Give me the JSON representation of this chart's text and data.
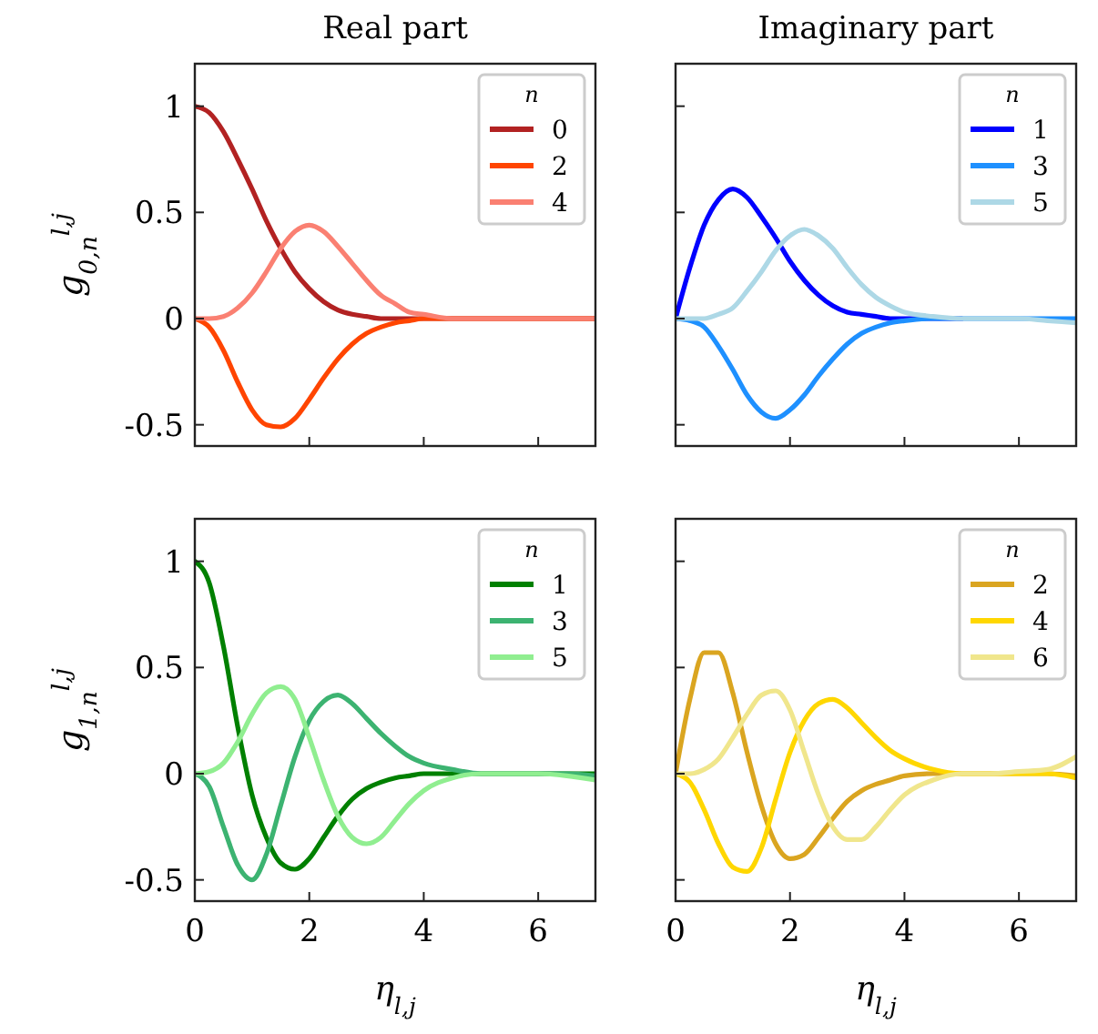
{
  "chart_data": [
    {
      "type": "line",
      "title": "Real part",
      "ylabel": "g$_{0,n}$$^{l,j}$",
      "legend_title": "n",
      "x": [
        0,
        0.25,
        0.5,
        0.75,
        1,
        1.25,
        1.5,
        1.75,
        2,
        2.25,
        2.5,
        2.75,
        3,
        3.25,
        3.5,
        3.75,
        4,
        4.5,
        5,
        5.5,
        6,
        6.5,
        7
      ],
      "xlim": [
        0,
        7
      ],
      "xticks": [
        0,
        2,
        4,
        6
      ],
      "ylim": [
        -0.6,
        1.2
      ],
      "yticks": [
        -0.5,
        0,
        0.5,
        1
      ],
      "tick_labels": "y",
      "legend": "top right",
      "grid": false,
      "marker": "none",
      "line_style": "solid",
      "series": [
        {
          "name": "0",
          "color": "#b22222",
          "values": [
            1,
            0.97,
            0.88,
            0.75,
            0.61,
            0.46,
            0.33,
            0.22,
            0.14,
            0.08,
            0.04,
            0.02,
            0.01,
            0,
            0,
            0,
            0,
            0,
            0,
            0,
            0,
            0,
            0
          ]
        },
        {
          "name": "2",
          "color": "#ff4500",
          "values": [
            0,
            -0.04,
            -0.15,
            -0.3,
            -0.43,
            -0.5,
            -0.51,
            -0.47,
            -0.38,
            -0.28,
            -0.19,
            -0.12,
            -0.07,
            -0.04,
            -0.02,
            -0.01,
            0,
            0,
            0,
            0,
            0,
            0,
            0
          ]
        },
        {
          "name": "4",
          "color": "#fa8072",
          "values": [
            0,
            0,
            0.01,
            0.05,
            0.12,
            0.22,
            0.33,
            0.41,
            0.44,
            0.41,
            0.34,
            0.26,
            0.18,
            0.11,
            0.07,
            0.03,
            0.02,
            0,
            0,
            0,
            0,
            0,
            0
          ]
        }
      ]
    },
    {
      "type": "line",
      "title": "Imaginary part",
      "legend_title": "n",
      "x": [
        0,
        0.25,
        0.5,
        0.75,
        1,
        1.25,
        1.5,
        1.75,
        2,
        2.25,
        2.5,
        2.75,
        3,
        3.25,
        3.5,
        3.75,
        4,
        4.5,
        5,
        5.5,
        6,
        6.5,
        7
      ],
      "xlim": [
        0,
        7
      ],
      "xticks": [
        0,
        2,
        4,
        6
      ],
      "ylim": [
        -0.6,
        1.2
      ],
      "yticks": [
        -0.5,
        0,
        0.5,
        1
      ],
      "tick_labels": false,
      "legend": "top right",
      "grid": false,
      "marker": "none",
      "line_style": "solid",
      "series": [
        {
          "name": "1",
          "color": "#0000ff",
          "values": [
            0,
            0.24,
            0.44,
            0.56,
            0.61,
            0.57,
            0.48,
            0.38,
            0.27,
            0.18,
            0.11,
            0.06,
            0.03,
            0.02,
            0.01,
            0,
            0,
            0,
            0,
            null,
            null,
            null,
            null
          ]
        },
        {
          "name": "3",
          "color": "#1e90ff",
          "values": [
            0,
            -0.01,
            -0.04,
            -0.13,
            -0.24,
            -0.36,
            -0.44,
            -0.47,
            -0.43,
            -0.36,
            -0.27,
            -0.19,
            -0.12,
            -0.07,
            -0.04,
            -0.02,
            -0.01,
            0,
            0,
            0,
            0,
            0,
            0
          ]
        },
        {
          "name": "5",
          "color": "#add8e6",
          "values": [
            0,
            0,
            0,
            0.02,
            0.05,
            0.13,
            0.22,
            0.32,
            0.39,
            0.42,
            0.39,
            0.33,
            0.24,
            0.16,
            0.1,
            0.06,
            0.03,
            0.01,
            0,
            0,
            0,
            -0.01,
            -0.02
          ]
        }
      ]
    },
    {
      "type": "line",
      "ylabel": "g$_{1,n}$$^{l,j}$",
      "xlabel": "η$_{l,j}$",
      "legend_title": "n",
      "x": [
        0,
        0.25,
        0.5,
        0.75,
        1,
        1.25,
        1.5,
        1.75,
        2,
        2.25,
        2.5,
        2.75,
        3,
        3.25,
        3.5,
        3.75,
        4,
        4.5,
        5,
        5.5,
        6,
        6.5,
        7
      ],
      "xlim": [
        0,
        7
      ],
      "xticks": [
        0,
        2,
        4,
        6
      ],
      "ylim": [
        -0.6,
        1.2
      ],
      "yticks": [
        -0.5,
        0,
        0.5,
        1
      ],
      "legend": "top right",
      "grid": false,
      "marker": "none",
      "line_style": "solid",
      "series": [
        {
          "name": "1",
          "color": "#008000",
          "values": [
            1,
            0.9,
            0.6,
            0.22,
            -0.1,
            -0.3,
            -0.42,
            -0.45,
            -0.4,
            -0.3,
            -0.2,
            -0.12,
            -0.07,
            -0.04,
            -0.02,
            -0.01,
            0,
            0,
            0,
            0,
            0,
            0,
            0
          ]
        },
        {
          "name": "3",
          "color": "#3cb371",
          "values": [
            0,
            -0.06,
            -0.25,
            -0.43,
            -0.5,
            -0.38,
            -0.15,
            0.08,
            0.25,
            0.34,
            0.37,
            0.33,
            0.26,
            0.19,
            0.13,
            0.08,
            0.05,
            0.02,
            0,
            0,
            0,
            0,
            -0.01
          ]
        },
        {
          "name": "5",
          "color": "#90ee90",
          "values": [
            0,
            0.01,
            0.05,
            0.15,
            0.28,
            0.38,
            0.41,
            0.35,
            0.17,
            -0.03,
            -0.2,
            -0.3,
            -0.33,
            -0.3,
            -0.22,
            -0.14,
            -0.08,
            -0.02,
            0,
            0,
            0,
            -0.01,
            -0.03
          ]
        }
      ]
    },
    {
      "type": "line",
      "xlabel": "η$_{l,j}$",
      "legend_title": "n",
      "x": [
        0,
        0.25,
        0.5,
        0.75,
        1,
        1.25,
        1.5,
        1.75,
        2,
        2.25,
        2.5,
        2.75,
        3,
        3.25,
        3.5,
        3.75,
        4,
        4.5,
        5,
        5.5,
        6,
        6.5,
        7
      ],
      "xlim": [
        0,
        7
      ],
      "xticks": [
        0,
        2,
        4,
        6
      ],
      "ylim": [
        -0.6,
        1.2
      ],
      "yticks": [
        -0.5,
        0,
        0.5,
        1
      ],
      "tick_labels": "x",
      "legend": "top right",
      "grid": false,
      "marker": "none",
      "line_style": "solid",
      "series": [
        {
          "name": "2",
          "color": "#daa520",
          "values": [
            0,
            0.35,
            0.57,
            0.57,
            0.38,
            0.1,
            -0.15,
            -0.33,
            -0.4,
            -0.38,
            -0.3,
            -0.21,
            -0.13,
            -0.08,
            -0.05,
            -0.03,
            -0.01,
            0,
            0,
            0,
            0,
            0,
            -0.01
          ]
        },
        {
          "name": "4",
          "color": "#ffd700",
          "values": [
            0,
            -0.04,
            -0.17,
            -0.33,
            -0.44,
            -0.46,
            -0.35,
            -0.12,
            0.1,
            0.25,
            0.33,
            0.35,
            0.31,
            0.24,
            0.17,
            0.11,
            0.07,
            0.02,
            0,
            0,
            0,
            0,
            -0.02
          ]
        },
        {
          "name": "6",
          "color": "#f0e68c",
          "values": [
            0,
            0,
            0.02,
            0.07,
            0.17,
            0.28,
            0.37,
            0.39,
            0.3,
            0.1,
            -0.1,
            -0.25,
            -0.31,
            -0.31,
            -0.25,
            -0.17,
            -0.1,
            -0.03,
            0,
            0,
            0.01,
            0.02,
            0.08
          ]
        }
      ]
    }
  ]
}
